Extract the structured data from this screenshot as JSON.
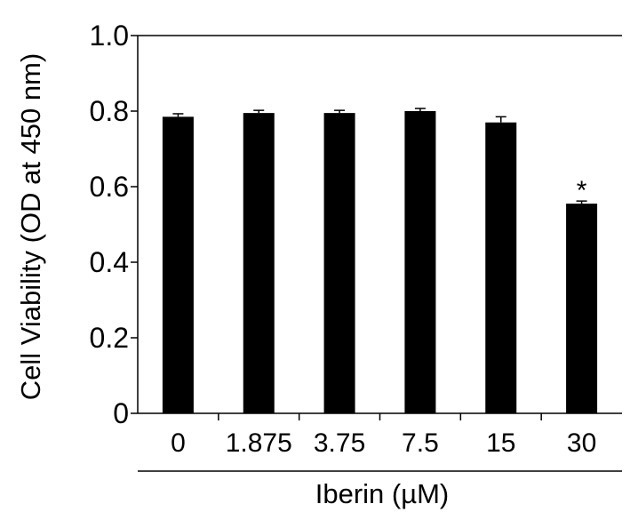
{
  "chart_data": {
    "type": "bar",
    "categories": [
      "0",
      "1.875",
      "3.75",
      "7.5",
      "15",
      "30"
    ],
    "values": [
      0.785,
      0.795,
      0.795,
      0.8,
      0.77,
      0.555
    ],
    "errors": [
      0.008,
      0.007,
      0.007,
      0.007,
      0.015,
      0.007
    ],
    "annotations": [
      "",
      "",
      "",
      "",
      "",
      "*"
    ],
    "ylabel": "Cell Viability (OD at 450 nm)",
    "xlabel": "Iberin (µM)",
    "ylim": [
      0,
      1.0
    ],
    "yticks": [
      "0",
      "0.2",
      "0.4",
      "0.6",
      "0.8",
      "1.0"
    ],
    "grid": false,
    "bar_color": "#000000"
  }
}
